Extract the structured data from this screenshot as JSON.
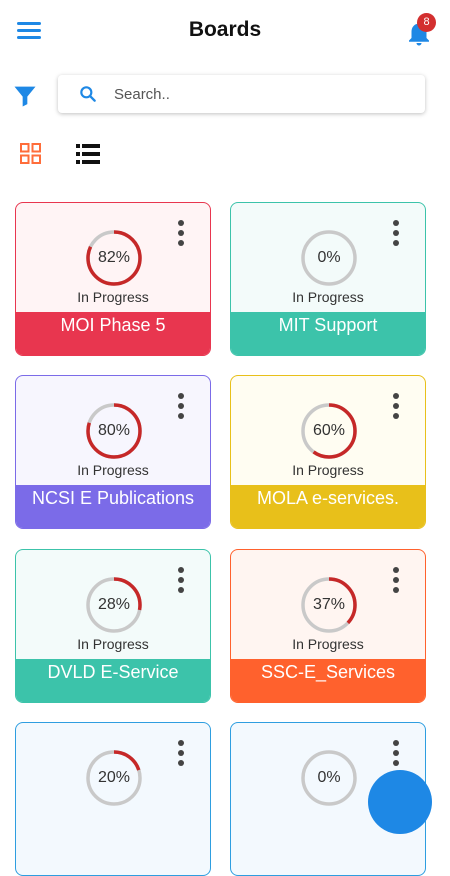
{
  "header": {
    "title": "Boards",
    "notification_count": "8"
  },
  "icons": {
    "menu": "menu-icon",
    "bell": "bell-icon",
    "filter": "filter-icon",
    "search": "search-icon",
    "grid": "grid-view-icon",
    "list": "list-view-icon",
    "more": "more-vertical-icon"
  },
  "search": {
    "placeholder": "Search..",
    "value": ""
  },
  "colors": {
    "accent": "#1e88e5",
    "view_active": "#ff6d3a",
    "progress": "#c62828",
    "track": "#c9c9c9"
  },
  "boards": [
    {
      "name": "MOI Phase 5",
      "percent_label": "82%",
      "progress": 0.82,
      "status": "In Progress",
      "color": "#e8364f",
      "bg": "#fff4f5"
    },
    {
      "name": "MIT Support",
      "percent_label": "0%",
      "progress": 0.0,
      "status": "In Progress",
      "color": "#3cc3aa",
      "bg": "#f3fbfa"
    },
    {
      "name": "NCSI E Publications",
      "percent_label": "80%",
      "progress": 0.8,
      "status": "In Progress",
      "color": "#7b6be8",
      "bg": "#f7f6fe"
    },
    {
      "name": "MOLA e-services.",
      "percent_label": "60%",
      "progress": 0.6,
      "status": "In Progress",
      "color": "#e8c01a",
      "bg": "#fffdf2"
    },
    {
      "name": "DVLD E-Service",
      "percent_label": "28%",
      "progress": 0.28,
      "status": "In Progress",
      "color": "#3cc3aa",
      "bg": "#f3fbfa"
    },
    {
      "name": "SSC-E_Services",
      "percent_label": "37%",
      "progress": 0.37,
      "status": "In Progress",
      "color": "#ff612d",
      "bg": "#fff5f1"
    },
    {
      "name": "",
      "percent_label": "20%",
      "progress": 0.2,
      "status": "",
      "color": "#2e9ee0",
      "bg": "#f3f9fe"
    },
    {
      "name": "",
      "percent_label": "0%",
      "progress": 0.0,
      "status": "",
      "color": "#2e9ee0",
      "bg": "#f3f9fe"
    }
  ]
}
